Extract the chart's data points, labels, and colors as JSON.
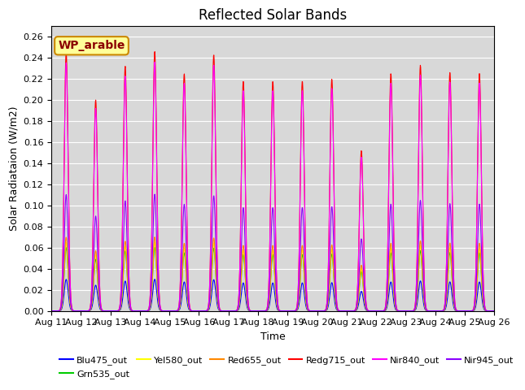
{
  "title": "Reflected Solar Bands",
  "xlabel": "Time",
  "ylabel": "Solar Radiataion (W/m2)",
  "ylim": [
    0,
    0.27
  ],
  "yticks": [
    0.0,
    0.02,
    0.04,
    0.06,
    0.08,
    0.1,
    0.12,
    0.14,
    0.16,
    0.18,
    0.2,
    0.22,
    0.24,
    0.26
  ],
  "start_day": 11,
  "end_day": 26,
  "num_days": 15,
  "points_per_day": 96,
  "wp_label": "WP_arable",
  "series": [
    {
      "name": "Blu475_out",
      "color": "#0000FF",
      "peak_ratio": 0.122
    },
    {
      "name": "Grn535_out",
      "color": "#00CC00",
      "peak_ratio": 0.245
    },
    {
      "name": "Yel580_out",
      "color": "#FFFF00",
      "peak_ratio": 0.265
    },
    {
      "name": "Red655_out",
      "color": "#FF8800",
      "peak_ratio": 0.285
    },
    {
      "name": "Redg715_out",
      "color": "#FF0000",
      "peak_ratio": 1.0
    },
    {
      "name": "Nir840_out",
      "color": "#FF00FF",
      "peak_ratio": 0.96
    },
    {
      "name": "Nir945_out",
      "color": "#8B00FF",
      "peak_ratio": 0.45
    }
  ],
  "day_peaks": [
    0.245,
    0.2,
    0.232,
    0.246,
    0.225,
    0.243,
    0.218,
    0.218,
    0.218,
    0.22,
    0.152,
    0.225,
    0.233,
    0.226,
    0.225
  ],
  "background_color": "#d8d8d8",
  "tick_label_fontsize": 8,
  "legend_fontsize": 8,
  "title_fontsize": 12,
  "sigma": 0.065
}
